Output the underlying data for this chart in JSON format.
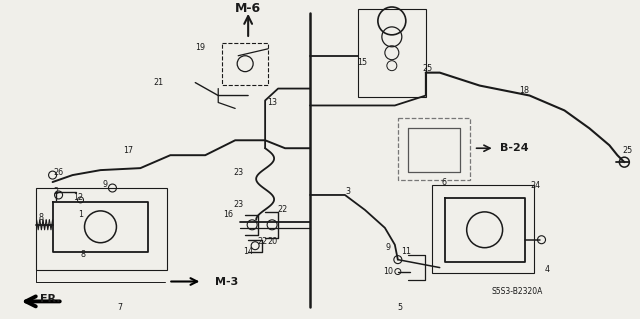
{
  "bg_color": "#f0efea",
  "line_color": "#1a1a1a",
  "fig_width": 6.4,
  "fig_height": 3.19,
  "dpi": 100,
  "title_text": "S5S3-B2320A",
  "m6_label": "M-6",
  "m3_label": "M-3",
  "b24_label": "B-24",
  "fr_label": "FR.",
  "part_label_fontsize": 5.8,
  "main_label_fontsize": 7.5,
  "small_label_fontsize": 5.5
}
